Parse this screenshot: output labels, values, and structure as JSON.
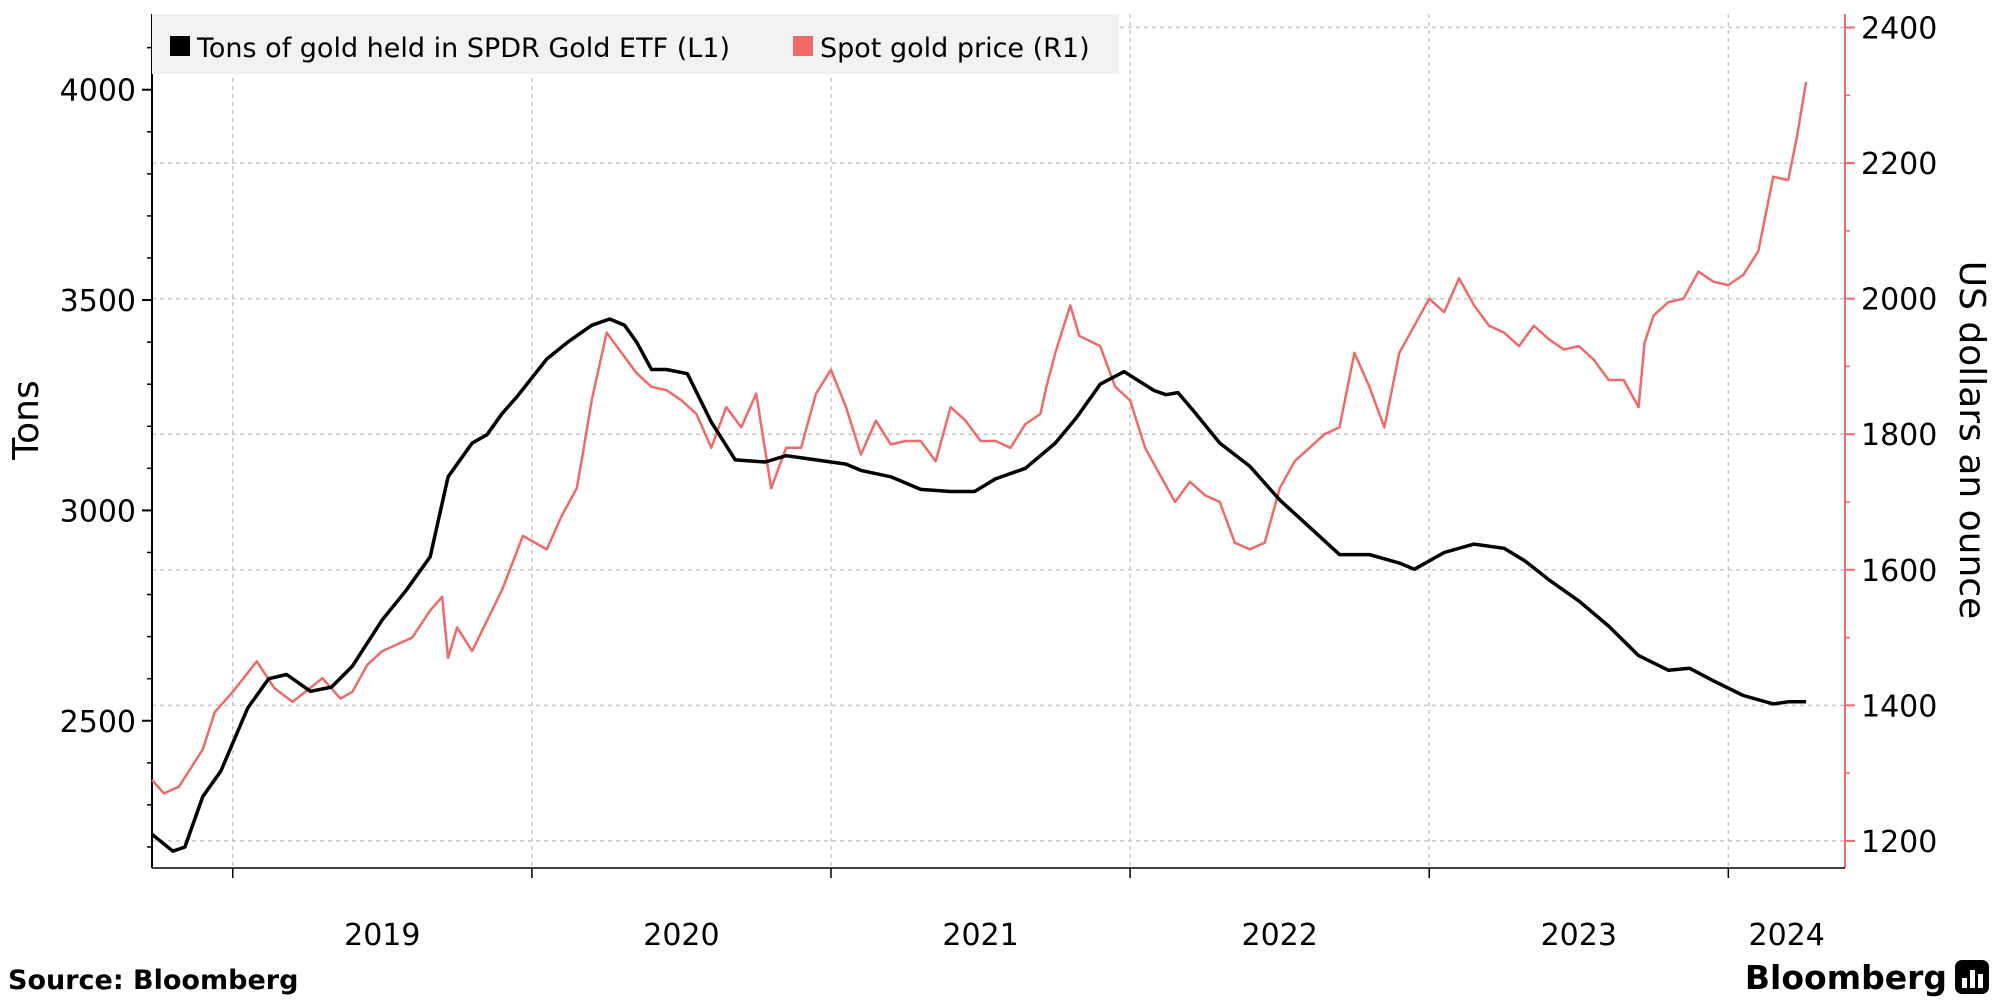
{
  "chart_data": {
    "type": "line",
    "legend": {
      "placement": "top-left",
      "entries": [
        {
          "label": "Tons of gold held in SPDR Gold ETF (L1)",
          "color": "#000000"
        },
        {
          "label": "Spot gold price (R1)",
          "color": "#ef6a6a"
        }
      ]
    },
    "left_axis": {
      "label": "Tons",
      "ylim": [
        2150,
        4180
      ],
      "ticks": [
        2500,
        3000,
        3500,
        4000
      ],
      "color": "#000000"
    },
    "right_axis": {
      "label": "US dollars an ounce",
      "ylim": [
        1160,
        2420
      ],
      "ticks": [
        1200,
        1400,
        1600,
        1800,
        2000,
        2200,
        2400
      ],
      "color": "#ef6a6a"
    },
    "x_axis": {
      "range": [
        2018.73,
        2024.39
      ],
      "year_ticks": [
        "2019",
        "2020",
        "2021",
        "2022",
        "2023",
        "2024"
      ],
      "grid": true
    },
    "series": [
      {
        "name": "Tons of gold held in SPDR Gold ETF (L1)",
        "axis": "left",
        "color": "#000000",
        "x": [
          2018.73,
          2018.8,
          2018.84,
          2018.9,
          2018.96,
          2019.05,
          2019.12,
          2019.18,
          2019.26,
          2019.33,
          2019.4,
          2019.5,
          2019.58,
          2019.66,
          2019.72,
          2019.8,
          2019.85,
          2019.9,
          2019.95,
          2020.05,
          2020.12,
          2020.2,
          2020.26,
          2020.31,
          2020.35,
          2020.4,
          2020.45,
          2020.52,
          2020.6,
          2020.68,
          2020.78,
          2020.85,
          2020.95,
          2021.05,
          2021.1,
          2021.2,
          2021.3,
          2021.4,
          2021.48,
          2021.55,
          2021.65,
          2021.75,
          2021.82,
          2021.9,
          2021.98,
          2022.08,
          2022.12,
          2022.16,
          2022.22,
          2022.3,
          2022.4,
          2022.5,
          2022.6,
          2022.7,
          2022.8,
          2022.9,
          2022.95,
          2023.05,
          2023.15,
          2023.25,
          2023.32,
          2023.4,
          2023.5,
          2023.6,
          2023.7,
          2023.8,
          2023.87,
          2023.95,
          2024.05,
          2024.15,
          2024.2,
          2024.26
        ],
        "values": [
          2230,
          2190,
          2200,
          2320,
          2380,
          2530,
          2600,
          2610,
          2570,
          2580,
          2630,
          2740,
          2810,
          2890,
          3080,
          3160,
          3180,
          3230,
          3270,
          3360,
          3400,
          3440,
          3455,
          3440,
          3400,
          3335,
          3335,
          3325,
          3210,
          3120,
          3115,
          3130,
          3120,
          3110,
          3095,
          3080,
          3050,
          3045,
          3045,
          3075,
          3100,
          3160,
          3220,
          3300,
          3330,
          3285,
          3275,
          3280,
          3230,
          3160,
          3105,
          3025,
          2960,
          2895,
          2895,
          2875,
          2860,
          2900,
          2920,
          2910,
          2880,
          2835,
          2785,
          2725,
          2655,
          2620,
          2625,
          2595,
          2560,
          2540,
          2545,
          2545
        ]
      },
      {
        "name": "Spot gold price (R1)",
        "axis": "right",
        "color": "#ef6a6a",
        "x": [
          2018.73,
          2018.77,
          2018.82,
          2018.9,
          2018.94,
          2019.0,
          2019.08,
          2019.14,
          2019.2,
          2019.3,
          2019.36,
          2019.4,
          2019.45,
          2019.5,
          2019.6,
          2019.66,
          2019.7,
          2019.72,
          2019.75,
          2019.8,
          2019.9,
          2019.97,
          2020.05,
          2020.1,
          2020.15,
          2020.17,
          2020.2,
          2020.25,
          2020.3,
          2020.35,
          2020.4,
          2020.45,
          2020.5,
          2020.55,
          2020.6,
          2020.65,
          2020.7,
          2020.75,
          2020.8,
          2020.85,
          2020.9,
          2020.95,
          2021.0,
          2021.05,
          2021.1,
          2021.15,
          2021.2,
          2021.25,
          2021.3,
          2021.35,
          2021.4,
          2021.45,
          2021.5,
          2021.55,
          2021.6,
          2021.65,
          2021.7,
          2021.72,
          2021.75,
          2021.8,
          2021.83,
          2021.9,
          2021.95,
          2022.0,
          2022.05,
          2022.1,
          2022.15,
          2022.2,
          2022.25,
          2022.3,
          2022.35,
          2022.4,
          2022.45,
          2022.5,
          2022.55,
          2022.6,
          2022.65,
          2022.7,
          2022.75,
          2022.8,
          2022.85,
          2022.9,
          2022.95,
          2023.0,
          2023.05,
          2023.1,
          2023.15,
          2023.2,
          2023.25,
          2023.3,
          2023.35,
          2023.4,
          2023.45,
          2023.5,
          2023.55,
          2023.6,
          2023.65,
          2023.7,
          2023.72,
          2023.75,
          2023.8,
          2023.85,
          2023.9,
          2023.95,
          2024.0,
          2024.05,
          2024.1,
          2024.15,
          2024.2,
          2024.23,
          2024.26
        ],
        "values": [
          1290,
          1270,
          1280,
          1335,
          1390,
          1420,
          1465,
          1425,
          1405,
          1440,
          1410,
          1420,
          1460,
          1480,
          1500,
          1540,
          1560,
          1470,
          1515,
          1480,
          1570,
          1650,
          1630,
          1680,
          1720,
          1770,
          1850,
          1950,
          1920,
          1890,
          1870,
          1865,
          1850,
          1830,
          1780,
          1840,
          1810,
          1860,
          1720,
          1780,
          1780,
          1860,
          1895,
          1840,
          1770,
          1820,
          1785,
          1790,
          1790,
          1760,
          1840,
          1820,
          1790,
          1790,
          1780,
          1815,
          1830,
          1870,
          1920,
          1990,
          1945,
          1930,
          1870,
          1850,
          1780,
          1740,
          1700,
          1730,
          1710,
          1700,
          1640,
          1630,
          1640,
          1720,
          1760,
          1780,
          1800,
          1810,
          1920,
          1870,
          1810,
          1920,
          1960,
          2000,
          1980,
          2030,
          1990,
          1960,
          1950,
          1930,
          1960,
          1940,
          1925,
          1930,
          1910,
          1880,
          1880,
          1840,
          1935,
          1975,
          1995,
          2000,
          2040,
          2025,
          2020,
          2035,
          2070,
          2180,
          2175,
          2240,
          2320
        ]
      }
    ]
  },
  "footer": {
    "source": "Source: Bloomberg",
    "brand": "Bloomberg"
  }
}
